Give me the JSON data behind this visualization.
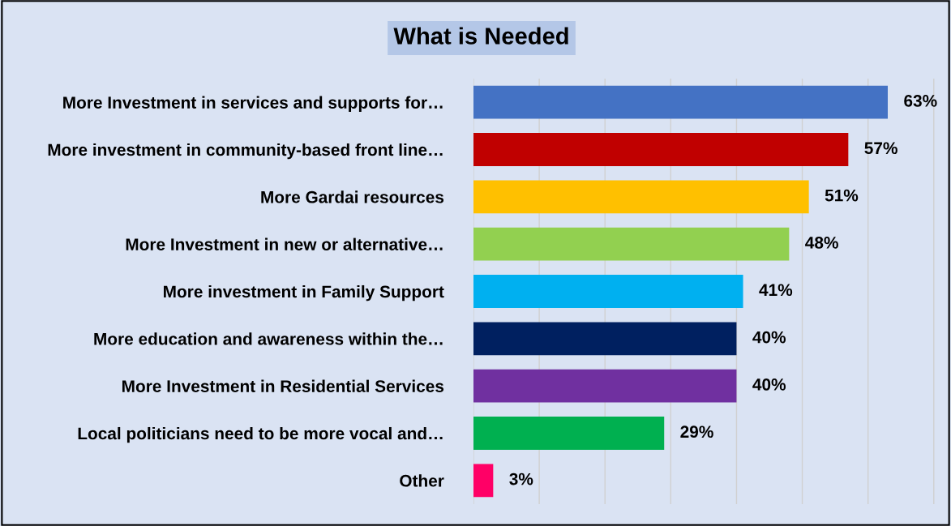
{
  "chart_data": {
    "type": "bar",
    "orientation": "horizontal",
    "title": "What is Needed",
    "categories": [
      "More Investment in services and supports for…",
      "More investment in community-based front line…",
      "More Gardai resources",
      "More Investment in new or alternative…",
      "More investment in Family Support",
      "More education and awareness within the…",
      "More Investment in Residential Services",
      "Local politicians need to be more vocal and…",
      "Other"
    ],
    "values": [
      63,
      57,
      51,
      48,
      41,
      40,
      40,
      29,
      3
    ],
    "value_labels": [
      "63%",
      "57%",
      "51%",
      "48%",
      "41%",
      "40%",
      "40%",
      "29%",
      "3%"
    ],
    "colors": [
      "#4472c4",
      "#c00000",
      "#ffc000",
      "#92d050",
      "#00b0f0",
      "#002060",
      "#7030a0",
      "#00b050",
      "#ff0066"
    ],
    "xlim": [
      0,
      72
    ],
    "xticks": [
      {
        "value": 0,
        "label": null
      },
      {
        "value": 10,
        "label": null
      },
      {
        "value": 20,
        "label": null
      },
      {
        "value": 30,
        "label": null
      },
      {
        "value": 40,
        "label": null
      },
      {
        "value": 50,
        "label": null
      },
      {
        "value": 60,
        "label": null
      },
      {
        "value": 70,
        "label": null
      }
    ],
    "grid": "x",
    "legend": false
  }
}
